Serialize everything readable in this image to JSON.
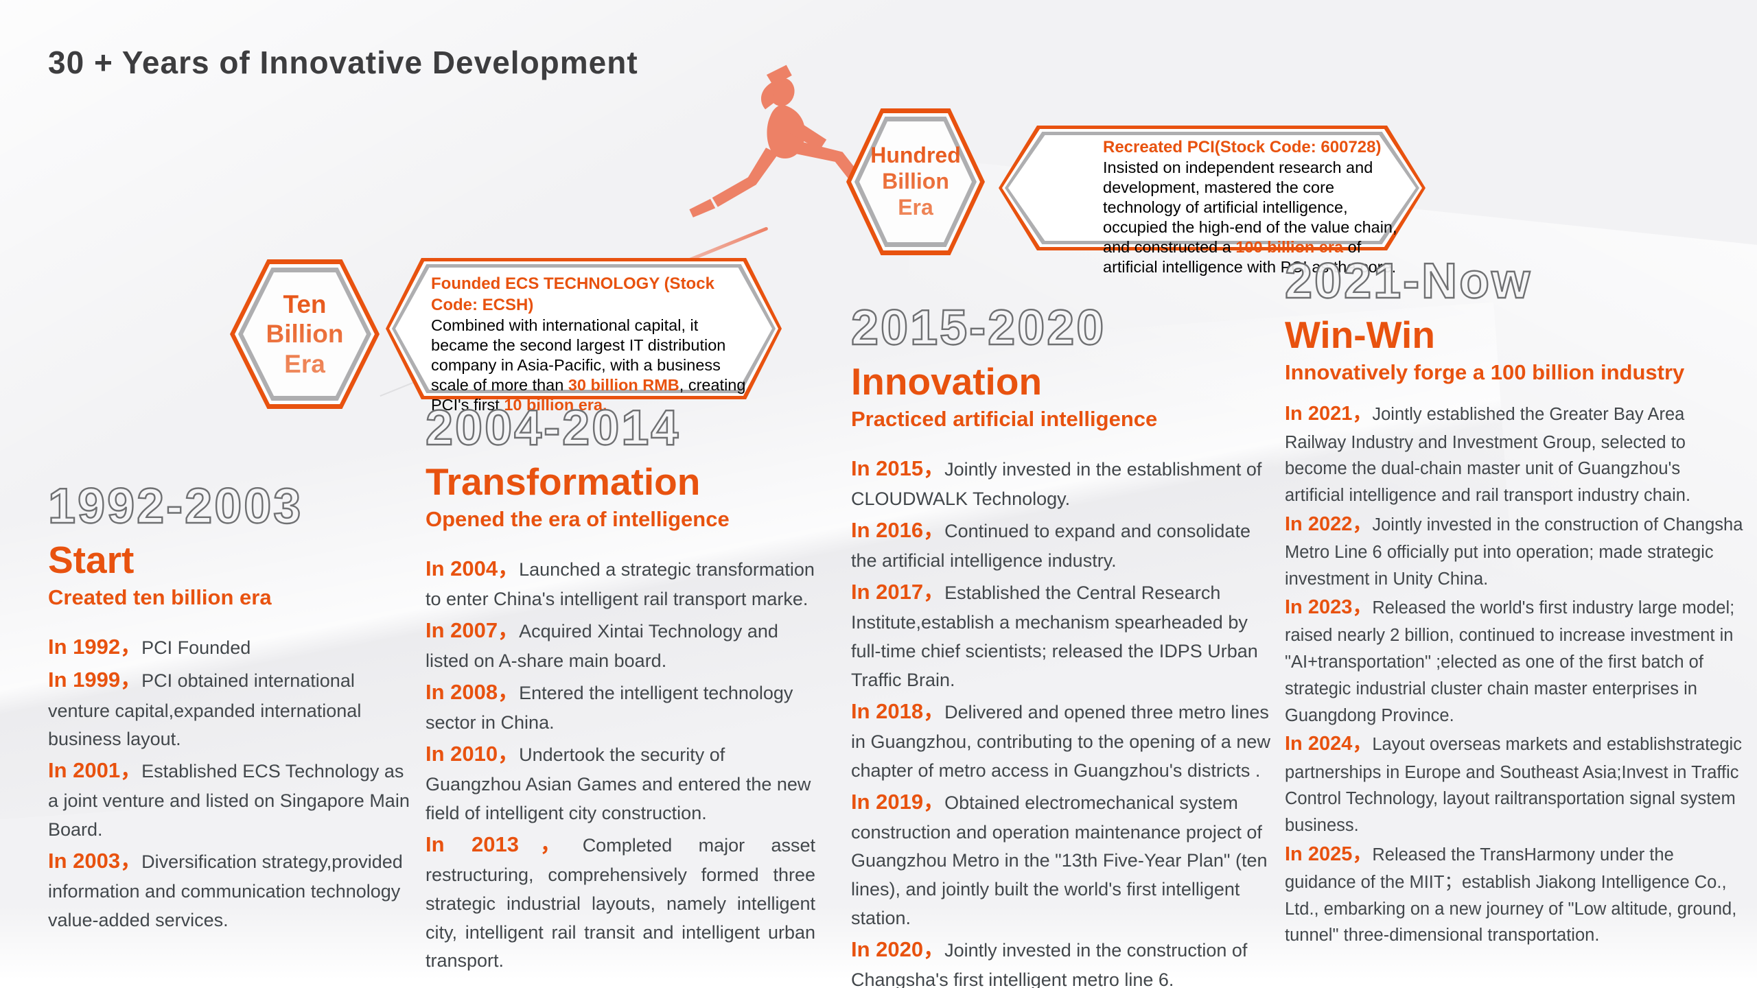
{
  "page": {
    "title": "30 + Years of Innovative Development"
  },
  "colors": {
    "accent": "#E8520F",
    "accent_soft": "#ED8166",
    "title_gray": "#3D3D3F",
    "body_gray": "#42474B",
    "era_outline_gray": "#6F7072",
    "frame_border_gray": "#AEAEB0",
    "callout_text_black": "#000000",
    "background": "#F2F2F4"
  },
  "separator": "，",
  "badges": [
    {
      "id": "ten-billion",
      "lines": [
        "Ten",
        "Billion",
        "Era"
      ]
    },
    {
      "id": "hundred-billion",
      "lines": [
        "Hundred",
        "Billion",
        "Era"
      ]
    }
  ],
  "callouts": [
    {
      "id": "ecs",
      "title": "Founded ECS TECHNOLOGY (Stock Code: ECSH)",
      "parts": [
        {
          "text": "Combined with international capital, it became the second largest IT distribution company in Asia-Pacific, with a business scale of more than ",
          "highlight": false
        },
        {
          "text": "30 billion RMB",
          "highlight": true
        },
        {
          "text": ", creating PCI's first ",
          "highlight": false
        },
        {
          "text": "10 billion era.",
          "highlight": true
        }
      ]
    },
    {
      "id": "pci",
      "title": "Recreated PCI(Stock Code: 600728)",
      "parts": [
        {
          "text": "Insisted on independent research and development, mastered the core technology of artificial intelligence, occupied the high-end of the value chain, and constructed a ",
          "highlight": false
        },
        {
          "text": "100 billion era",
          "highlight": true
        },
        {
          "text": " of artificial intelligence with PCI as the core.",
          "highlight": false
        }
      ]
    }
  ],
  "columns": [
    {
      "era": "1992-2003",
      "title": "Start",
      "subtitle": "Created ten billion era",
      "entries": [
        {
          "year": "In 1992",
          "text": "PCI Founded"
        },
        {
          "year": "In 1999",
          "text": "PCI obtained international venture capital,expanded international business layout."
        },
        {
          "year": "In 2001",
          "text": "Established ECS Technology as a joint venture and listed on Singapore Main Board."
        },
        {
          "year": "In 2003",
          "text": "Diversification strategy,provided information and communication technology value-added services."
        }
      ]
    },
    {
      "era": "2004-2014",
      "title": "Transformation",
      "subtitle": "Opened the era of intelligence",
      "entries": [
        {
          "year": "In 2004",
          "text": "Launched a strategic transformation to enter China's intelligent rail transport marke."
        },
        {
          "year": "In 2007",
          "text": "Acquired Xintai Technology and listed on A-share main board."
        },
        {
          "year": "In 2008",
          "text": "Entered the intelligent technology sector in China."
        },
        {
          "year": "In 2010",
          "text": "Undertook the security of Guangzhou Asian Games and entered the new field of intelligent city construction."
        },
        {
          "year": "In 2013",
          "text": "Completed major asset restructuring, comprehensively formed three strategic industrial layouts, namely intelligent city, intelligent rail transit and intelligent urban transport.",
          "justify": true
        }
      ]
    },
    {
      "era": "2015-2020",
      "title": "Innovation",
      "subtitle": "Practiced artificial intelligence",
      "entries": [
        {
          "year": "In 2015",
          "text": "Jointly invested in the establishment of CLOUDWALK Technology."
        },
        {
          "year": "In 2016",
          "text": "Continued to expand and consolidate the artificial intelligence industry."
        },
        {
          "year": "In 2017",
          "text": "Established the Central Research Institute,establish a mechanism spearheaded by full-time chief scientists; released the IDPS Urban Traffic Brain."
        },
        {
          "year": "In 2018",
          "text": "Delivered and opened three metro lines in Guangzhou, contributing to the opening of a new chapter of metro access in Guangzhou's districts ."
        },
        {
          "year": "In 2019",
          "text": "Obtained electromechanical system construction and operation maintenance project of Guangzhou Metro in the \"13th Five-Year Plan\" (ten lines), and jointly built the world's first intelligent station."
        },
        {
          "year": "In 2020",
          "text": "Jointly invested in the construction of Changsha's first intelligent metro line 6."
        }
      ]
    },
    {
      "era": "2021-Now",
      "title": "Win-Win",
      "subtitle": "Innovatively forge a 100 billion industry",
      "entries": [
        {
          "year": "In 2021",
          "text": "Jointly established the Greater Bay Area Railway Industry and Investment Group, selected to become the dual-chain master unit of Guangzhou's artificial intelligence and rail transport industry chain."
        },
        {
          "year": "In 2022",
          "text": "Jointly invested in the construction of Changsha Metro Line 6 officially put into operation; made strategic investment in Unity China."
        },
        {
          "year": "In 2023",
          "text": "Released the world's first industry large model; raised nearly 2 billion, continued to increase investment in \"AI+transportation\" ;elected as one of the first batch of strategic industrial cluster chain master enterprises in Guangdong Province."
        },
        {
          "year": "In 2024",
          "text": "Layout overseas markets and establishstrategic partnerships in Europe and Southeast Asia;Invest in Traffic Control Technology, layout railtransportation signal system business."
        },
        {
          "year": "In 2025",
          "text": "Released the TransHarmony under the guidance of the MIIT；establish Jiakong Intelligence Co., Ltd., embarking on a new journey of \"Low altitude, ground, tunnel\" three-dimensional transportation."
        }
      ]
    }
  ]
}
